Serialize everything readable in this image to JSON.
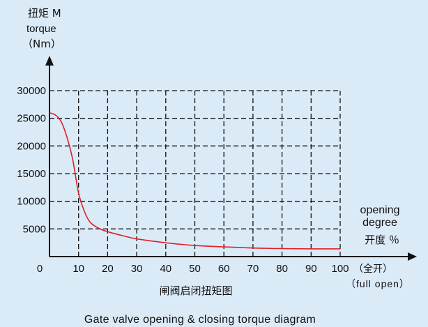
{
  "chart_data": {
    "type": "line",
    "title_cn": "闸阀启闭扭矩图",
    "title_en": "Gate valve opening & closing torque diagram",
    "y_axis": {
      "label_line1": "扭矩 M",
      "label_line2": "torque",
      "label_line3": "（Nm）",
      "ticks": [
        5000,
        10000,
        15000,
        20000,
        25000,
        30000
      ],
      "ylim": [
        0,
        30000
      ]
    },
    "x_axis": {
      "label_line1": "opening",
      "label_line2": "degree",
      "label_line3": "开度 ％",
      "ticks": [
        10,
        20,
        30,
        40,
        50,
        60,
        70,
        80,
        90,
        100
      ],
      "origin_label": "0",
      "end_label_cn": "（全开）",
      "end_label_en": "（full open）",
      "xlim": [
        0,
        100
      ]
    },
    "grid": true,
    "series": [
      {
        "color": "#e0202a",
        "x": [
          0,
          2,
          4,
          6,
          8,
          10,
          12,
          14,
          17,
          20,
          25,
          30,
          40,
          50,
          60,
          70,
          80,
          90,
          100
        ],
        "y": [
          26000,
          25600,
          24400,
          21600,
          17500,
          11500,
          8200,
          6200,
          5100,
          4500,
          3800,
          3200,
          2500,
          2000,
          1750,
          1550,
          1450,
          1400,
          1400
        ]
      }
    ]
  }
}
